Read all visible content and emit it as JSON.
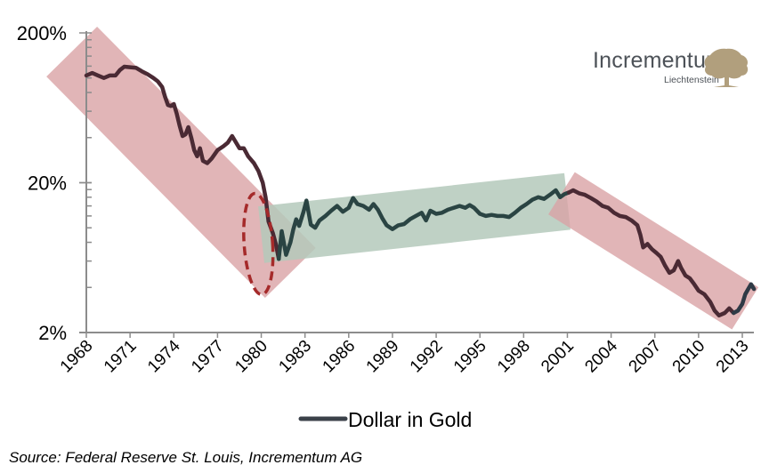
{
  "chart_data": {
    "type": "line",
    "title": "",
    "xlabel": "",
    "ylabel": "",
    "yscale": "log",
    "ylim": [
      2,
      200
    ],
    "xlim": [
      1968,
      2013.8
    ],
    "y_ticks": [
      {
        "value": 200,
        "label": "200%"
      },
      {
        "value": 20,
        "label": "20%"
      },
      {
        "value": 2,
        "label": "2%"
      }
    ],
    "x_ticks": [
      1968,
      1971,
      1974,
      1977,
      1980,
      1983,
      1986,
      1989,
      1992,
      1995,
      1998,
      2001,
      2004,
      2007,
      2010,
      2013
    ],
    "x_tick_labels": [
      "1968",
      "1971",
      "1974",
      "1977",
      "1980",
      "1983",
      "1986",
      "1989",
      "1992",
      "1995",
      "1998",
      "2001",
      "2004",
      "2007",
      "2010",
      "2013"
    ],
    "legend": {
      "placement": "bottom",
      "entries": [
        {
          "name": "Dollar in Gold",
          "color": "#3b4149"
        }
      ]
    },
    "series": [
      {
        "name": "Dollar in Gold",
        "points": [
          [
            1968.0,
            104
          ],
          [
            1968.4,
            108
          ],
          [
            1968.8,
            104
          ],
          [
            1969.2,
            100
          ],
          [
            1969.6,
            104
          ],
          [
            1970.0,
            104
          ],
          [
            1970.3,
            113
          ],
          [
            1970.6,
            119
          ],
          [
            1971.0,
            118
          ],
          [
            1971.4,
            117
          ],
          [
            1971.8,
            111
          ],
          [
            1972.2,
            106
          ],
          [
            1972.6,
            100
          ],
          [
            1972.9,
            95
          ],
          [
            1973.2,
            87
          ],
          [
            1973.4,
            75
          ],
          [
            1973.6,
            66
          ],
          [
            1973.8,
            65
          ],
          [
            1974.0,
            67
          ],
          [
            1974.2,
            58
          ],
          [
            1974.4,
            48
          ],
          [
            1974.6,
            41
          ],
          [
            1974.8,
            42
          ],
          [
            1975.0,
            47
          ],
          [
            1975.2,
            40
          ],
          [
            1975.4,
            33
          ],
          [
            1975.6,
            30
          ],
          [
            1975.8,
            34
          ],
          [
            1976.0,
            28
          ],
          [
            1976.3,
            27
          ],
          [
            1976.6,
            29
          ],
          [
            1977.0,
            33
          ],
          [
            1977.4,
            35
          ],
          [
            1977.7,
            37
          ],
          [
            1978.0,
            41
          ],
          [
            1978.2,
            38
          ],
          [
            1978.5,
            34
          ],
          [
            1978.8,
            34
          ],
          [
            1979.1,
            30
          ],
          [
            1979.5,
            27
          ],
          [
            1979.8,
            24
          ],
          [
            1980.1,
            20
          ],
          [
            1980.3,
            16
          ],
          [
            1980.5,
            11
          ],
          [
            1980.8,
            9.2
          ],
          [
            1981.0,
            7.8
          ],
          [
            1981.2,
            6.2
          ],
          [
            1981.4,
            9.5
          ],
          [
            1981.7,
            6.6
          ],
          [
            1982.0,
            8.0
          ],
          [
            1982.2,
            9.8
          ],
          [
            1982.4,
            11.4
          ],
          [
            1982.6,
            10.3
          ],
          [
            1982.9,
            12.8
          ],
          [
            1983.1,
            15.2
          ],
          [
            1983.4,
            10.5
          ],
          [
            1983.7,
            10.0
          ],
          [
            1984.0,
            11.2
          ],
          [
            1984.4,
            12.0
          ],
          [
            1984.8,
            13.0
          ],
          [
            1985.2,
            14.0
          ],
          [
            1985.6,
            12.8
          ],
          [
            1986.0,
            13.6
          ],
          [
            1986.3,
            15.8
          ],
          [
            1986.6,
            14.4
          ],
          [
            1987.0,
            14.0
          ],
          [
            1987.4,
            13.2
          ],
          [
            1987.7,
            14.4
          ],
          [
            1988.0,
            13.2
          ],
          [
            1988.3,
            11.6
          ],
          [
            1988.6,
            10.4
          ],
          [
            1989.0,
            9.8
          ],
          [
            1989.4,
            10.4
          ],
          [
            1989.8,
            10.6
          ],
          [
            1990.2,
            11.4
          ],
          [
            1990.6,
            12.0
          ],
          [
            1991.0,
            12.6
          ],
          [
            1991.3,
            11.2
          ],
          [
            1991.6,
            13.0
          ],
          [
            1992.0,
            12.4
          ],
          [
            1992.4,
            12.6
          ],
          [
            1992.8,
            13.2
          ],
          [
            1993.2,
            13.6
          ],
          [
            1993.6,
            14.0
          ],
          [
            1994.0,
            13.6
          ],
          [
            1994.3,
            14.2
          ],
          [
            1994.6,
            13.6
          ],
          [
            1995.0,
            12.4
          ],
          [
            1995.4,
            12.0
          ],
          [
            1995.8,
            12.2
          ],
          [
            1996.2,
            12.0
          ],
          [
            1996.6,
            12.0
          ],
          [
            1997.0,
            11.8
          ],
          [
            1997.4,
            12.6
          ],
          [
            1997.8,
            13.6
          ],
          [
            1998.2,
            14.4
          ],
          [
            1998.6,
            15.4
          ],
          [
            1999.0,
            16.0
          ],
          [
            1999.4,
            15.6
          ],
          [
            1999.8,
            16.6
          ],
          [
            2000.2,
            17.8
          ],
          [
            2000.5,
            16.0
          ],
          [
            2000.8,
            16.8
          ],
          [
            2001.1,
            17.2
          ],
          [
            2001.4,
            17.8
          ],
          [
            2001.8,
            17.0
          ],
          [
            2002.2,
            16.6
          ],
          [
            2002.6,
            15.8
          ],
          [
            2003.0,
            15.0
          ],
          [
            2003.4,
            14.0
          ],
          [
            2003.8,
            13.6
          ],
          [
            2004.2,
            12.6
          ],
          [
            2004.6,
            12.0
          ],
          [
            2005.0,
            11.8
          ],
          [
            2005.4,
            11.2
          ],
          [
            2005.8,
            10.4
          ],
          [
            2006.0,
            9.0
          ],
          [
            2006.2,
            7.4
          ],
          [
            2006.5,
            7.8
          ],
          [
            2006.8,
            7.2
          ],
          [
            2007.1,
            6.8
          ],
          [
            2007.4,
            6.4
          ],
          [
            2007.7,
            5.6
          ],
          [
            2008.0,
            5.0
          ],
          [
            2008.3,
            5.2
          ],
          [
            2008.6,
            6.0
          ],
          [
            2008.8,
            5.4
          ],
          [
            2009.1,
            4.8
          ],
          [
            2009.4,
            4.6
          ],
          [
            2009.7,
            4.2
          ],
          [
            2010.0,
            3.8
          ],
          [
            2010.4,
            3.6
          ],
          [
            2010.8,
            3.2
          ],
          [
            2011.1,
            2.8
          ],
          [
            2011.4,
            2.6
          ],
          [
            2011.8,
            2.7
          ],
          [
            2012.1,
            2.9
          ],
          [
            2012.4,
            2.7
          ],
          [
            2012.7,
            2.8
          ],
          [
            2013.0,
            3.1
          ],
          [
            2013.2,
            3.6
          ],
          [
            2013.4,
            3.9
          ],
          [
            2013.6,
            4.2
          ],
          [
            2013.8,
            3.9
          ]
        ]
      }
    ],
    "annotations": [
      {
        "type": "trend-band",
        "label": "decline",
        "color": "#d9a2a5",
        "from": [
          1967.0,
          150
        ],
        "to": [
          1982.0,
          5.0
        ]
      },
      {
        "type": "trend-band",
        "label": "sideways",
        "color": "#b4c9bb",
        "from": [
          1980.0,
          9.0
        ],
        "to": [
          2001.0,
          15.0
        ]
      },
      {
        "type": "trend-band",
        "label": "decline",
        "color": "#d9a2a5",
        "from": [
          2000.6,
          17.0
        ],
        "to": [
          2013.2,
          2.9
        ]
      },
      {
        "type": "dashed-ellipse",
        "label": "1980 turning point",
        "color": "#a52a2a",
        "center": [
          1979.8,
          7.8
        ]
      }
    ]
  },
  "logo": {
    "name": "Incrementum",
    "subtitle": "Liechtenstein",
    "icon": "tree-icon"
  },
  "source": "Source: Federal Reserve St. Louis, Incrementum AG",
  "colors": {
    "line_decline": "#4a2a34",
    "line_sideways": "#2a4443",
    "line_recent": "#2f3a46",
    "band_red": "#d9a2a5",
    "band_green": "#b4c9bb",
    "band_overlap": "#b5a89a",
    "axis": "#8c8c8c",
    "ellipse": "#a52a2a",
    "logo_text": "#4d5258",
    "logo_tree": "#b19f7d"
  }
}
